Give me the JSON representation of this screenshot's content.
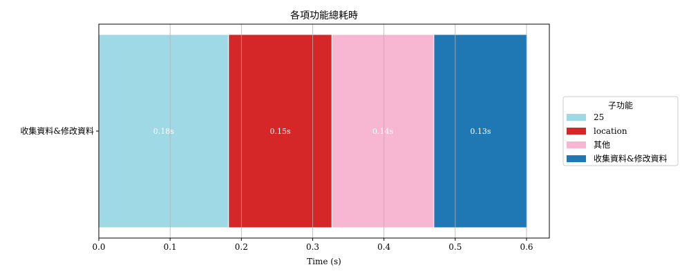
{
  "chart_data": {
    "type": "bar",
    "orientation": "horizontal",
    "stacked": true,
    "title": "各項功能總耗時",
    "xlabel": "Time (s)",
    "ylabel": "",
    "categories": [
      "收集資料&修改資料"
    ],
    "xlim": [
      0,
      0.632
    ],
    "xticks": [
      "0.0",
      "0.1",
      "0.2",
      "0.3",
      "0.4",
      "0.5",
      "0.6"
    ],
    "grid": "vertical",
    "legend_title": "子功能",
    "legend_position": "right",
    "series": [
      {
        "name": "25",
        "value": 0.182,
        "label": "0.18s",
        "color": "#9ed9e5"
      },
      {
        "name": "location",
        "value": 0.145,
        "label": "0.15s",
        "color": "#d62728"
      },
      {
        "name": "其他",
        "value": 0.143,
        "label": "0.14s",
        "color": "#f7b6d2"
      },
      {
        "name": "收集資料&修改資料",
        "value": 0.131,
        "label": "0.13s",
        "color": "#1f77b4"
      }
    ]
  }
}
